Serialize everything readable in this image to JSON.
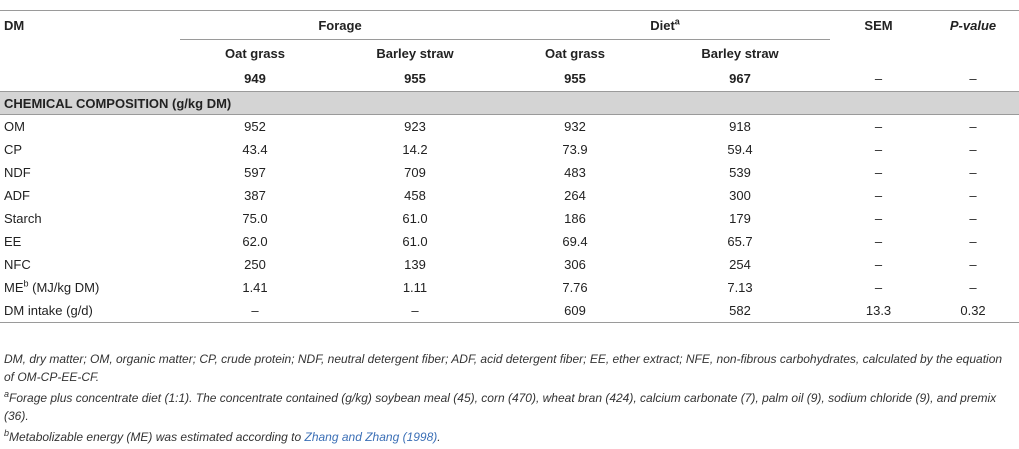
{
  "header": {
    "dm": "DM",
    "forage": "Forage",
    "diet": "Diet",
    "diet_sup": "a",
    "sem": "SEM",
    "pvalue": "P-value",
    "sub": [
      "Oat grass",
      "Barley straw",
      "Oat grass",
      "Barley straw"
    ],
    "dm_values": [
      "949",
      "955",
      "955",
      "967",
      "–",
      "–"
    ]
  },
  "section_title": "CHEMICAL COMPOSITION (g/kg DM)",
  "rows": [
    {
      "label": "OM",
      "values": [
        "952",
        "923",
        "932",
        "918",
        "–",
        "–"
      ]
    },
    {
      "label": "CP",
      "values": [
        "43.4",
        "14.2",
        "73.9",
        "59.4",
        "–",
        "–"
      ]
    },
    {
      "label": "NDF",
      "values": [
        "597",
        "709",
        "483",
        "539",
        "–",
        "–"
      ]
    },
    {
      "label": "ADF",
      "values": [
        "387",
        "458",
        "264",
        "300",
        "–",
        "–"
      ]
    },
    {
      "label": "Starch",
      "values": [
        "75.0",
        "61.0",
        "186",
        "179",
        "–",
        "–"
      ]
    },
    {
      "label": "EE",
      "values": [
        "62.0",
        "61.0",
        "69.4",
        "65.7",
        "–",
        "–"
      ]
    },
    {
      "label": "NFC",
      "values": [
        "250",
        "139",
        "306",
        "254",
        "–",
        "–"
      ]
    },
    {
      "label": "ME",
      "label_sup": "b",
      "label_suffix": " (MJ/kg DM)",
      "values": [
        "1.41",
        "1.11",
        "7.76",
        "7.13",
        "–",
        "–"
      ]
    },
    {
      "label": "DM intake (g/d)",
      "values": [
        "–",
        "–",
        "609",
        "582",
        "13.3",
        "0.32"
      ]
    }
  ],
  "footnotes": {
    "abbrev": "DM, dry matter; OM, organic matter; CP, crude protein; NDF, neutral detergent fiber; ADF, acid detergent fiber; EE, ether extract; NFE, non-fibrous carbohydrates, calculated by the equation of OM-CP-EE-CF.",
    "a_mark": "a",
    "a_text": "Forage plus concentrate diet (1:1). The concentrate contained (g/kg) soybean meal (45), corn (470), wheat bran (424), calcium carbonate (7), palm oil (9), sodium chloride (9), and premix (36).",
    "b_mark": "b",
    "b_text": "Metabolizable energy (ME) was estimated according to ",
    "b_ref": "Zhang and Zhang (1998)",
    "b_end": "."
  }
}
